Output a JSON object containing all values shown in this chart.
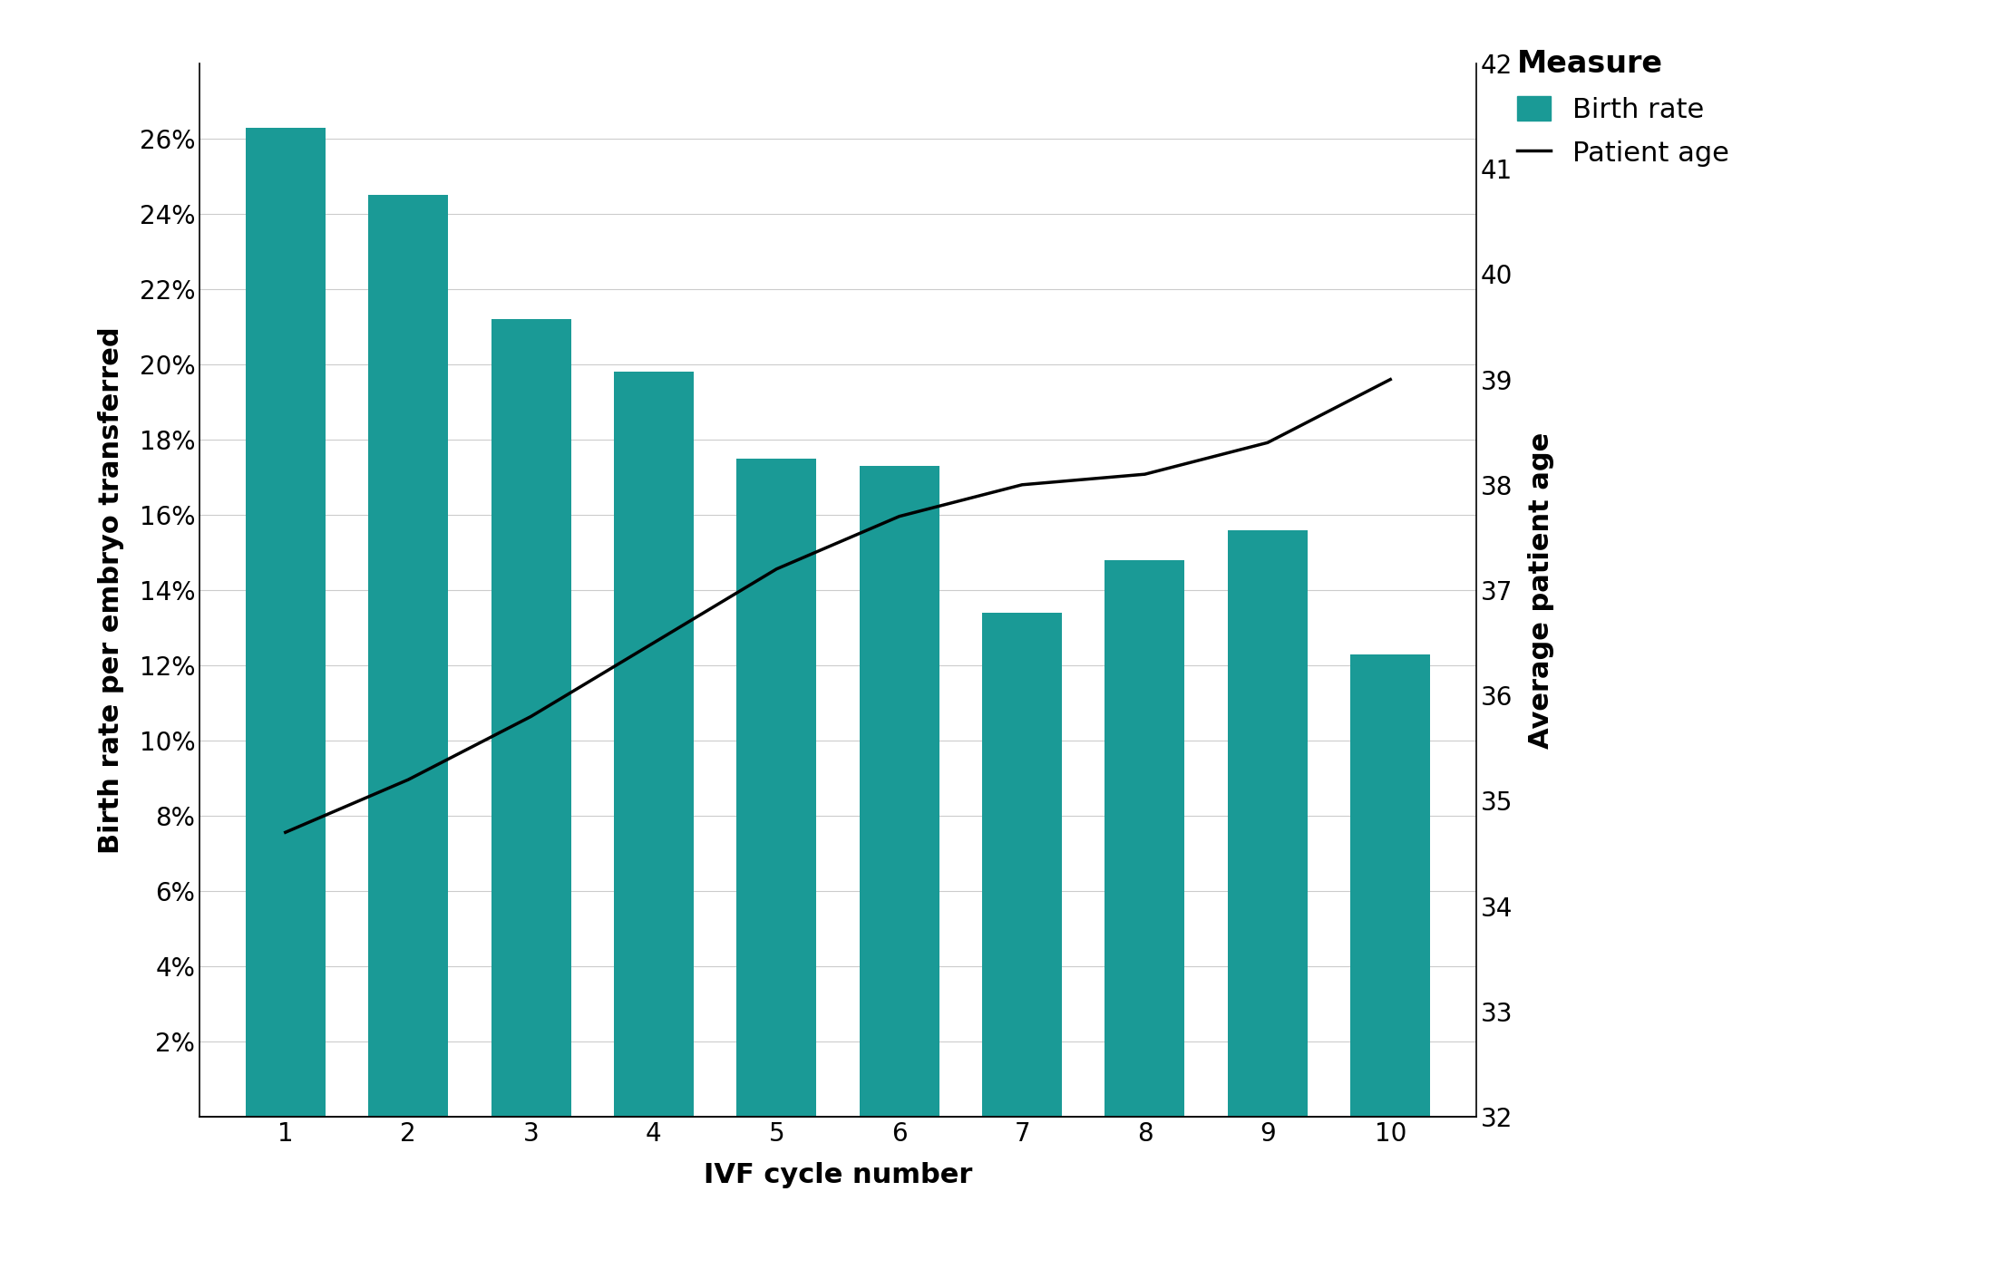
{
  "cycles": [
    1,
    2,
    3,
    4,
    5,
    6,
    7,
    8,
    9,
    10
  ],
  "birth_rates": [
    0.263,
    0.245,
    0.212,
    0.198,
    0.175,
    0.173,
    0.134,
    0.148,
    0.156,
    0.123
  ],
  "patient_ages": [
    34.7,
    35.2,
    35.8,
    36.5,
    37.2,
    37.7,
    38.0,
    38.1,
    38.4,
    39.0
  ],
  "bar_color": "#1a9a96",
  "line_color": "#000000",
  "background_color": "#ffffff",
  "ylabel_left": "Birth rate per embryo transferred",
  "ylabel_right": "Average patient age",
  "xlabel": "IVF cycle number",
  "ylim_left": [
    0,
    0.28
  ],
  "ylim_right": [
    32,
    42
  ],
  "yticks_left": [
    0.02,
    0.04,
    0.06,
    0.08,
    0.1,
    0.12,
    0.14,
    0.16,
    0.18,
    0.2,
    0.22,
    0.24,
    0.26
  ],
  "ytick_labels_left": [
    "2%",
    "4%",
    "6%",
    "8%",
    "10%",
    "12%",
    "14%",
    "16%",
    "18%",
    "20%",
    "22%",
    "24%",
    "26%"
  ],
  "yticks_right": [
    32,
    33,
    34,
    35,
    36,
    37,
    38,
    39,
    40,
    41,
    42
  ],
  "legend_title": "Measure",
  "legend_birth_label": "Birth rate",
  "legend_age_label": "Patient age",
  "axis_label_fontsize": 22,
  "tick_fontsize": 20,
  "legend_fontsize": 22,
  "legend_title_fontsize": 24,
  "bar_width": 0.65,
  "xlim": [
    0.3,
    10.7
  ],
  "grid_color": "#cccccc",
  "grid_linewidth": 0.8,
  "line_linewidth": 2.5,
  "spine_linewidth": 1.2
}
